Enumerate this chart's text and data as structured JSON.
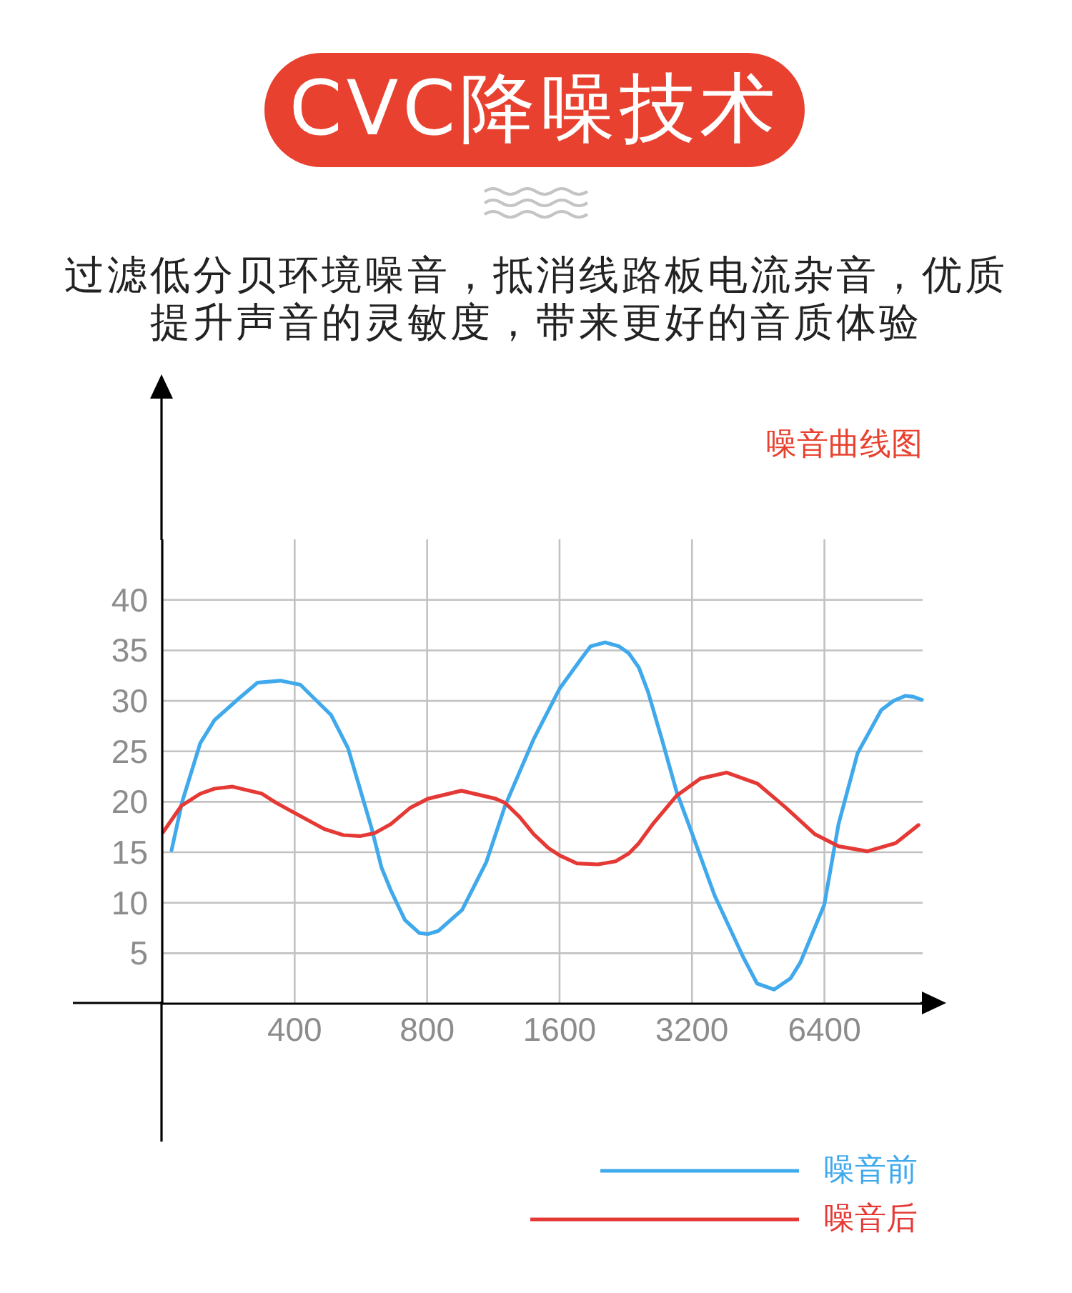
{
  "chart_data": {
    "type": "line",
    "title": "CVC降噪技术",
    "subtitle": "过滤低分贝环境噪音，抵消线路板电流杂音，优质提升声音的灵敏度，带来更好的音质体验",
    "annotations": [
      "噪音曲线图"
    ],
    "log": "x",
    "xlim": [
      200,
      10700
    ],
    "xticks": [
      400,
      800,
      1600,
      3200,
      6400
    ],
    "ylim": [
      0,
      46
    ],
    "yticks": [
      5,
      10,
      15,
      20,
      25,
      30,
      35,
      40
    ],
    "grid": true,
    "legend": "bottom right",
    "line_style": "solid",
    "series": [
      {
        "name": "噪音前",
        "color": "#3fa9ec",
        "x": [
          210,
          222,
          244,
          263,
          298,
          329,
          371,
          412,
          444,
          484,
          529,
          599,
          630,
          662,
          712,
          768,
          803,
          848,
          961,
          1090,
          1203,
          1397,
          1600,
          1794,
          1882,
          2031,
          2185,
          2301,
          2423,
          2542,
          2733,
          2952,
          3205,
          3604,
          4185,
          4498,
          4920,
          5358,
          5645,
          6395,
          6891,
          7610,
          8620,
          9184,
          9765,
          10200,
          10660
        ],
        "values": [
          15.2,
          20.0,
          25.8,
          28.1,
          30.2,
          31.8,
          32.0,
          31.6,
          30.2,
          28.6,
          25.3,
          17.3,
          13.5,
          11.2,
          8.3,
          7.0,
          6.9,
          7.2,
          9.3,
          14.0,
          19.6,
          26.2,
          31.2,
          34.2,
          35.4,
          35.8,
          35.4,
          34.7,
          33.3,
          30.9,
          26.2,
          21.0,
          16.8,
          10.7,
          4.6,
          2.0,
          1.4,
          2.5,
          4.1,
          9.8,
          17.8,
          24.8,
          29.1,
          30.0,
          30.5,
          30.4,
          30.1
        ]
      },
      {
        "name": "噪音后",
        "color": "#e53935",
        "x": [
          201,
          221,
          244,
          263,
          289,
          337,
          363,
          400,
          467,
          516,
          563,
          608,
          662,
          732,
          803,
          957,
          1146,
          1203,
          1298,
          1397,
          1511,
          1600,
          1752,
          1956,
          2145,
          2301,
          2423,
          2607,
          2952,
          3344,
          3834,
          4510,
          5237,
          6084,
          6891,
          8004,
          9292,
          10470
        ],
        "values": [
          17.0,
          19.6,
          20.8,
          21.3,
          21.5,
          20.8,
          19.9,
          18.9,
          17.3,
          16.7,
          16.6,
          16.9,
          17.8,
          19.4,
          20.3,
          21.1,
          20.3,
          19.9,
          18.5,
          16.8,
          15.4,
          14.7,
          13.9,
          13.8,
          14.1,
          14.9,
          15.9,
          17.8,
          20.6,
          22.3,
          22.9,
          21.8,
          19.4,
          16.8,
          15.6,
          15.1,
          15.9,
          17.7
        ]
      }
    ]
  }
}
